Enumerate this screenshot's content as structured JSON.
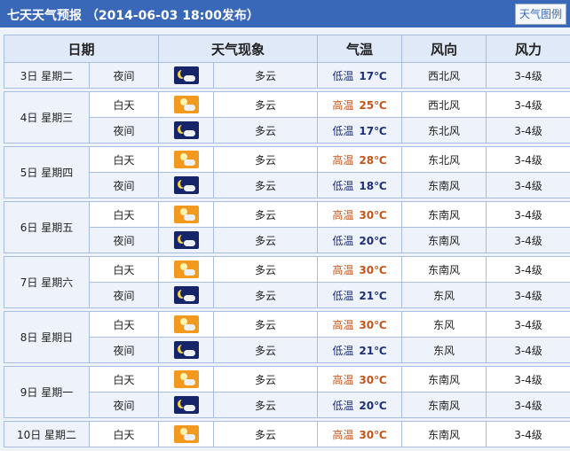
{
  "title": "七天天气预报 （2014-06-03 18:00发布）",
  "legend_button": "天气图例",
  "headers": [
    "日期",
    "天气现象",
    "气温",
    "风向",
    "风力"
  ],
  "colors": {
    "header_bar": "#3a68b8",
    "high_temp": "#c4541a",
    "low_temp": "#1d2e7a"
  },
  "days": [
    {
      "date": "3日 星期二",
      "rows": [
        {
          "period": "夜间",
          "icon": "moon-cloud-icon",
          "desc": "多云",
          "temp_label": "低温",
          "temp": "17℃",
          "wind_dir": "西北风",
          "wind_force": "3-4级"
        }
      ]
    },
    {
      "date": "4日 星期三",
      "rows": [
        {
          "period": "白天",
          "icon": "sun-cloud-icon",
          "desc": "多云",
          "temp_label": "高温",
          "temp": "25℃",
          "wind_dir": "西北风",
          "wind_force": "3-4级"
        },
        {
          "period": "夜间",
          "icon": "moon-cloud-icon",
          "desc": "多云",
          "temp_label": "低温",
          "temp": "17℃",
          "wind_dir": "东北风",
          "wind_force": "3-4级"
        }
      ]
    },
    {
      "date": "5日 星期四",
      "rows": [
        {
          "period": "白天",
          "icon": "sun-cloud-icon",
          "desc": "多云",
          "temp_label": "高温",
          "temp": "28℃",
          "wind_dir": "东北风",
          "wind_force": "3-4级"
        },
        {
          "period": "夜间",
          "icon": "moon-cloud-icon",
          "desc": "多云",
          "temp_label": "低温",
          "temp": "18℃",
          "wind_dir": "东南风",
          "wind_force": "3-4级"
        }
      ]
    },
    {
      "date": "6日 星期五",
      "rows": [
        {
          "period": "白天",
          "icon": "sun-cloud-icon",
          "desc": "多云",
          "temp_label": "高温",
          "temp": "30℃",
          "wind_dir": "东南风",
          "wind_force": "3-4级"
        },
        {
          "period": "夜间",
          "icon": "moon-cloud-icon",
          "desc": "多云",
          "temp_label": "低温",
          "temp": "20℃",
          "wind_dir": "东南风",
          "wind_force": "3-4级"
        }
      ]
    },
    {
      "date": "7日 星期六",
      "rows": [
        {
          "period": "白天",
          "icon": "sun-cloud-icon",
          "desc": "多云",
          "temp_label": "高温",
          "temp": "30℃",
          "wind_dir": "东南风",
          "wind_force": "3-4级"
        },
        {
          "period": "夜间",
          "icon": "moon-cloud-icon",
          "desc": "多云",
          "temp_label": "低温",
          "temp": "21℃",
          "wind_dir": "东风",
          "wind_force": "3-4级"
        }
      ]
    },
    {
      "date": "8日 星期日",
      "rows": [
        {
          "period": "白天",
          "icon": "sun-cloud-icon",
          "desc": "多云",
          "temp_label": "高温",
          "temp": "30℃",
          "wind_dir": "东风",
          "wind_force": "3-4级"
        },
        {
          "period": "夜间",
          "icon": "moon-cloud-icon",
          "desc": "多云",
          "temp_label": "低温",
          "temp": "21℃",
          "wind_dir": "东风",
          "wind_force": "3-4级"
        }
      ]
    },
    {
      "date": "9日 星期一",
      "rows": [
        {
          "period": "白天",
          "icon": "sun-cloud-icon",
          "desc": "多云",
          "temp_label": "高温",
          "temp": "30℃",
          "wind_dir": "东南风",
          "wind_force": "3-4级"
        },
        {
          "period": "夜间",
          "icon": "moon-cloud-icon",
          "desc": "多云",
          "temp_label": "低温",
          "temp": "20℃",
          "wind_dir": "东南风",
          "wind_force": "3-4级"
        }
      ]
    },
    {
      "date": "10日 星期二",
      "rows": [
        {
          "period": "白天",
          "icon": "sun-cloud-icon",
          "desc": "多云",
          "temp_label": "高温",
          "temp": "30℃",
          "wind_dir": "东南风",
          "wind_force": "3-4级"
        }
      ]
    }
  ]
}
